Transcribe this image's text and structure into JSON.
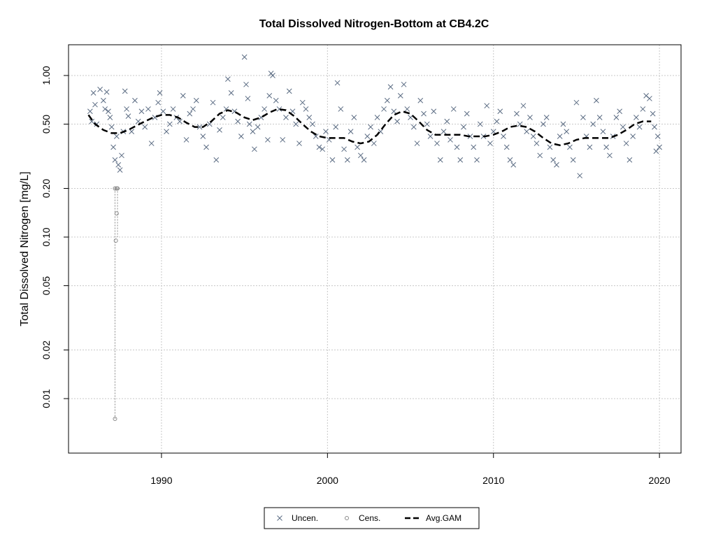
{
  "chart_data": {
    "type": "scatter",
    "title": "Total Dissolved Nitrogen-Bottom at CB4.2C",
    "xlabel": "",
    "ylabel": "Total Dissolved Nitrogen [mg/L]",
    "xlim": [
      1984.4,
      2021.3
    ],
    "ylim": [
      0.0046,
      1.55
    ],
    "y_scale": "log",
    "grid": true,
    "x_ticks": [
      1990,
      2000,
      2010,
      2020
    ],
    "y_ticks": [
      0.01,
      0.02,
      0.05,
      0.1,
      0.2,
      0.5,
      1.0
    ],
    "y_tick_labels": [
      "0.01",
      "0.02",
      "0.05",
      "0.10",
      "0.20",
      "0.50",
      "1.00"
    ],
    "legend_position": "bottom-center",
    "colors": {
      "uncen": "#5a6b82",
      "cens": "#8a8a8a",
      "gam": "#000000",
      "grid": "#c8c8c8"
    },
    "series": [
      {
        "name": "Uncen.",
        "marker": "x",
        "points": [
          [
            1985.7,
            0.6
          ],
          [
            1985.8,
            0.52
          ],
          [
            1985.9,
            0.78
          ],
          [
            1986.0,
            0.66
          ],
          [
            1986.1,
            0.5
          ],
          [
            1986.3,
            0.82
          ],
          [
            1986.5,
            0.7
          ],
          [
            1986.6,
            0.62
          ],
          [
            1986.7,
            0.79
          ],
          [
            1986.8,
            0.6
          ],
          [
            1986.9,
            0.55
          ],
          [
            1987.0,
            0.48
          ],
          [
            1987.1,
            0.36
          ],
          [
            1987.2,
            0.3
          ],
          [
            1987.3,
            0.42
          ],
          [
            1987.4,
            0.28
          ],
          [
            1987.5,
            0.26
          ],
          [
            1987.6,
            0.32
          ],
          [
            1987.7,
            0.45
          ],
          [
            1987.8,
            0.8
          ],
          [
            1987.9,
            0.62
          ],
          [
            1988.0,
            0.56
          ],
          [
            1988.2,
            0.45
          ],
          [
            1988.4,
            0.7
          ],
          [
            1988.6,
            0.52
          ],
          [
            1988.8,
            0.6
          ],
          [
            1989.0,
            0.48
          ],
          [
            1989.2,
            0.62
          ],
          [
            1989.4,
            0.38
          ],
          [
            1989.6,
            0.55
          ],
          [
            1989.8,
            0.68
          ],
          [
            1989.9,
            0.78
          ],
          [
            1990.1,
            0.6
          ],
          [
            1990.3,
            0.45
          ],
          [
            1990.5,
            0.5
          ],
          [
            1990.7,
            0.62
          ],
          [
            1990.9,
            0.55
          ],
          [
            1991.1,
            0.52
          ],
          [
            1991.3,
            0.75
          ],
          [
            1991.5,
            0.4
          ],
          [
            1991.7,
            0.58
          ],
          [
            1991.9,
            0.62
          ],
          [
            1992.1,
            0.7
          ],
          [
            1992.3,
            0.48
          ],
          [
            1992.5,
            0.42
          ],
          [
            1992.7,
            0.36
          ],
          [
            1992.9,
            0.5
          ],
          [
            1993.1,
            0.68
          ],
          [
            1993.3,
            0.3
          ],
          [
            1993.5,
            0.46
          ],
          [
            1993.7,
            0.55
          ],
          [
            1993.9,
            0.62
          ],
          [
            1994.0,
            0.95
          ],
          [
            1994.2,
            0.78
          ],
          [
            1994.4,
            0.6
          ],
          [
            1994.6,
            0.52
          ],
          [
            1994.8,
            0.42
          ],
          [
            1995.0,
            1.3
          ],
          [
            1995.1,
            0.88
          ],
          [
            1995.2,
            0.72
          ],
          [
            1995.3,
            0.5
          ],
          [
            1995.5,
            0.45
          ],
          [
            1995.6,
            0.35
          ],
          [
            1995.8,
            0.48
          ],
          [
            1996.0,
            0.55
          ],
          [
            1996.2,
            0.62
          ],
          [
            1996.4,
            0.4
          ],
          [
            1996.5,
            0.75
          ],
          [
            1996.6,
            1.03
          ],
          [
            1996.7,
            1.0
          ],
          [
            1996.9,
            0.7
          ],
          [
            1997.1,
            0.62
          ],
          [
            1997.3,
            0.4
          ],
          [
            1997.5,
            0.55
          ],
          [
            1997.7,
            0.8
          ],
          [
            1997.9,
            0.6
          ],
          [
            1998.1,
            0.5
          ],
          [
            1998.3,
            0.38
          ],
          [
            1998.5,
            0.68
          ],
          [
            1998.7,
            0.62
          ],
          [
            1998.9,
            0.55
          ],
          [
            1999.1,
            0.5
          ],
          [
            1999.3,
            0.42
          ],
          [
            1999.5,
            0.36
          ],
          [
            1999.7,
            0.35
          ],
          [
            1999.9,
            0.45
          ],
          [
            2000.1,
            0.4
          ],
          [
            2000.3,
            0.3
          ],
          [
            2000.5,
            0.48
          ],
          [
            2000.6,
            0.9
          ],
          [
            2000.8,
            0.62
          ],
          [
            2001.0,
            0.35
          ],
          [
            2001.2,
            0.3
          ],
          [
            2001.4,
            0.45
          ],
          [
            2001.6,
            0.55
          ],
          [
            2001.8,
            0.36
          ],
          [
            2002.0,
            0.32
          ],
          [
            2002.2,
            0.3
          ],
          [
            2002.4,
            0.42
          ],
          [
            2002.6,
            0.48
          ],
          [
            2002.8,
            0.38
          ],
          [
            2003.0,
            0.55
          ],
          [
            2003.2,
            0.45
          ],
          [
            2003.4,
            0.62
          ],
          [
            2003.6,
            0.7
          ],
          [
            2003.8,
            0.85
          ],
          [
            2004.0,
            0.6
          ],
          [
            2004.2,
            0.52
          ],
          [
            2004.4,
            0.75
          ],
          [
            2004.6,
            0.88
          ],
          [
            2004.8,
            0.62
          ],
          [
            2005.0,
            0.55
          ],
          [
            2005.2,
            0.48
          ],
          [
            2005.4,
            0.38
          ],
          [
            2005.6,
            0.7
          ],
          [
            2005.8,
            0.58
          ],
          [
            2006.0,
            0.5
          ],
          [
            2006.2,
            0.42
          ],
          [
            2006.4,
            0.6
          ],
          [
            2006.6,
            0.38
          ],
          [
            2006.8,
            0.3
          ],
          [
            2007.0,
            0.45
          ],
          [
            2007.2,
            0.52
          ],
          [
            2007.4,
            0.4
          ],
          [
            2007.6,
            0.62
          ],
          [
            2007.8,
            0.36
          ],
          [
            2008.0,
            0.3
          ],
          [
            2008.2,
            0.48
          ],
          [
            2008.4,
            0.58
          ],
          [
            2008.6,
            0.42
          ],
          [
            2008.8,
            0.36
          ],
          [
            2009.0,
            0.3
          ],
          [
            2009.2,
            0.5
          ],
          [
            2009.4,
            0.42
          ],
          [
            2009.6,
            0.65
          ],
          [
            2009.8,
            0.38
          ],
          [
            2010.0,
            0.45
          ],
          [
            2010.2,
            0.52
          ],
          [
            2010.4,
            0.6
          ],
          [
            2010.6,
            0.42
          ],
          [
            2010.8,
            0.36
          ],
          [
            2011.0,
            0.3
          ],
          [
            2011.2,
            0.28
          ],
          [
            2011.4,
            0.58
          ],
          [
            2011.6,
            0.5
          ],
          [
            2011.8,
            0.65
          ],
          [
            2012.0,
            0.45
          ],
          [
            2012.2,
            0.55
          ],
          [
            2012.4,
            0.42
          ],
          [
            2012.6,
            0.38
          ],
          [
            2012.8,
            0.32
          ],
          [
            2013.0,
            0.5
          ],
          [
            2013.2,
            0.55
          ],
          [
            2013.4,
            0.36
          ],
          [
            2013.6,
            0.3
          ],
          [
            2013.8,
            0.28
          ],
          [
            2014.0,
            0.42
          ],
          [
            2014.2,
            0.5
          ],
          [
            2014.4,
            0.45
          ],
          [
            2014.6,
            0.36
          ],
          [
            2014.8,
            0.3
          ],
          [
            2015.0,
            0.68
          ],
          [
            2015.2,
            0.24
          ],
          [
            2015.4,
            0.55
          ],
          [
            2015.6,
            0.42
          ],
          [
            2015.8,
            0.36
          ],
          [
            2016.0,
            0.5
          ],
          [
            2016.2,
            0.7
          ],
          [
            2016.4,
            0.55
          ],
          [
            2016.6,
            0.45
          ],
          [
            2016.8,
            0.36
          ],
          [
            2017.0,
            0.32
          ],
          [
            2017.2,
            0.42
          ],
          [
            2017.4,
            0.55
          ],
          [
            2017.6,
            0.6
          ],
          [
            2017.8,
            0.48
          ],
          [
            2018.0,
            0.38
          ],
          [
            2018.2,
            0.3
          ],
          [
            2018.4,
            0.42
          ],
          [
            2018.6,
            0.55
          ],
          [
            2018.8,
            0.48
          ],
          [
            2019.0,
            0.62
          ],
          [
            2019.2,
            0.75
          ],
          [
            2019.4,
            0.72
          ],
          [
            2019.6,
            0.58
          ],
          [
            2019.7,
            0.48
          ],
          [
            2019.8,
            0.34
          ],
          [
            2019.9,
            0.42
          ],
          [
            2020.0,
            0.36
          ]
        ]
      },
      {
        "name": "Cens.",
        "marker": "o",
        "points": [
          [
            1987.2,
            0.2
          ],
          [
            1987.3,
            0.2
          ],
          [
            1987.35,
            0.2
          ],
          [
            1987.3,
            0.14
          ],
          [
            1987.25,
            0.095
          ],
          [
            1987.2,
            0.0075
          ]
        ]
      },
      {
        "name": "Avg.GAM",
        "line": "dashed",
        "points": [
          [
            1985.6,
            0.57
          ],
          [
            1986.0,
            0.5
          ],
          [
            1986.5,
            0.46
          ],
          [
            1987.0,
            0.44
          ],
          [
            1987.5,
            0.44
          ],
          [
            1988.0,
            0.46
          ],
          [
            1988.5,
            0.49
          ],
          [
            1989.0,
            0.52
          ],
          [
            1989.5,
            0.55
          ],
          [
            1990.0,
            0.57
          ],
          [
            1990.5,
            0.57
          ],
          [
            1991.0,
            0.55
          ],
          [
            1991.5,
            0.51
          ],
          [
            1992.0,
            0.48
          ],
          [
            1992.5,
            0.48
          ],
          [
            1993.0,
            0.52
          ],
          [
            1993.5,
            0.58
          ],
          [
            1994.0,
            0.61
          ],
          [
            1994.5,
            0.59
          ],
          [
            1995.0,
            0.55
          ],
          [
            1995.5,
            0.53
          ],
          [
            1996.0,
            0.55
          ],
          [
            1996.5,
            0.59
          ],
          [
            1997.0,
            0.62
          ],
          [
            1997.5,
            0.61
          ],
          [
            1998.0,
            0.56
          ],
          [
            1998.5,
            0.5
          ],
          [
            1999.0,
            0.45
          ],
          [
            1999.5,
            0.42
          ],
          [
            2000.0,
            0.41
          ],
          [
            2000.5,
            0.41
          ],
          [
            2001.0,
            0.41
          ],
          [
            2001.5,
            0.39
          ],
          [
            2002.0,
            0.38
          ],
          [
            2002.5,
            0.39
          ],
          [
            2003.0,
            0.43
          ],
          [
            2003.5,
            0.5
          ],
          [
            2004.0,
            0.57
          ],
          [
            2004.5,
            0.6
          ],
          [
            2005.0,
            0.58
          ],
          [
            2005.5,
            0.52
          ],
          [
            2006.0,
            0.46
          ],
          [
            2006.5,
            0.43
          ],
          [
            2007.0,
            0.43
          ],
          [
            2007.5,
            0.43
          ],
          [
            2008.0,
            0.43
          ],
          [
            2008.5,
            0.42
          ],
          [
            2009.0,
            0.42
          ],
          [
            2009.5,
            0.42
          ],
          [
            2010.0,
            0.43
          ],
          [
            2010.5,
            0.45
          ],
          [
            2011.0,
            0.48
          ],
          [
            2011.5,
            0.49
          ],
          [
            2012.0,
            0.48
          ],
          [
            2012.5,
            0.45
          ],
          [
            2013.0,
            0.41
          ],
          [
            2013.5,
            0.38
          ],
          [
            2014.0,
            0.37
          ],
          [
            2014.5,
            0.38
          ],
          [
            2015.0,
            0.4
          ],
          [
            2015.5,
            0.41
          ],
          [
            2016.0,
            0.41
          ],
          [
            2016.5,
            0.41
          ],
          [
            2017.0,
            0.41
          ],
          [
            2017.5,
            0.43
          ],
          [
            2018.0,
            0.46
          ],
          [
            2018.5,
            0.5
          ],
          [
            2019.0,
            0.52
          ],
          [
            2019.5,
            0.52
          ]
        ]
      }
    ]
  }
}
